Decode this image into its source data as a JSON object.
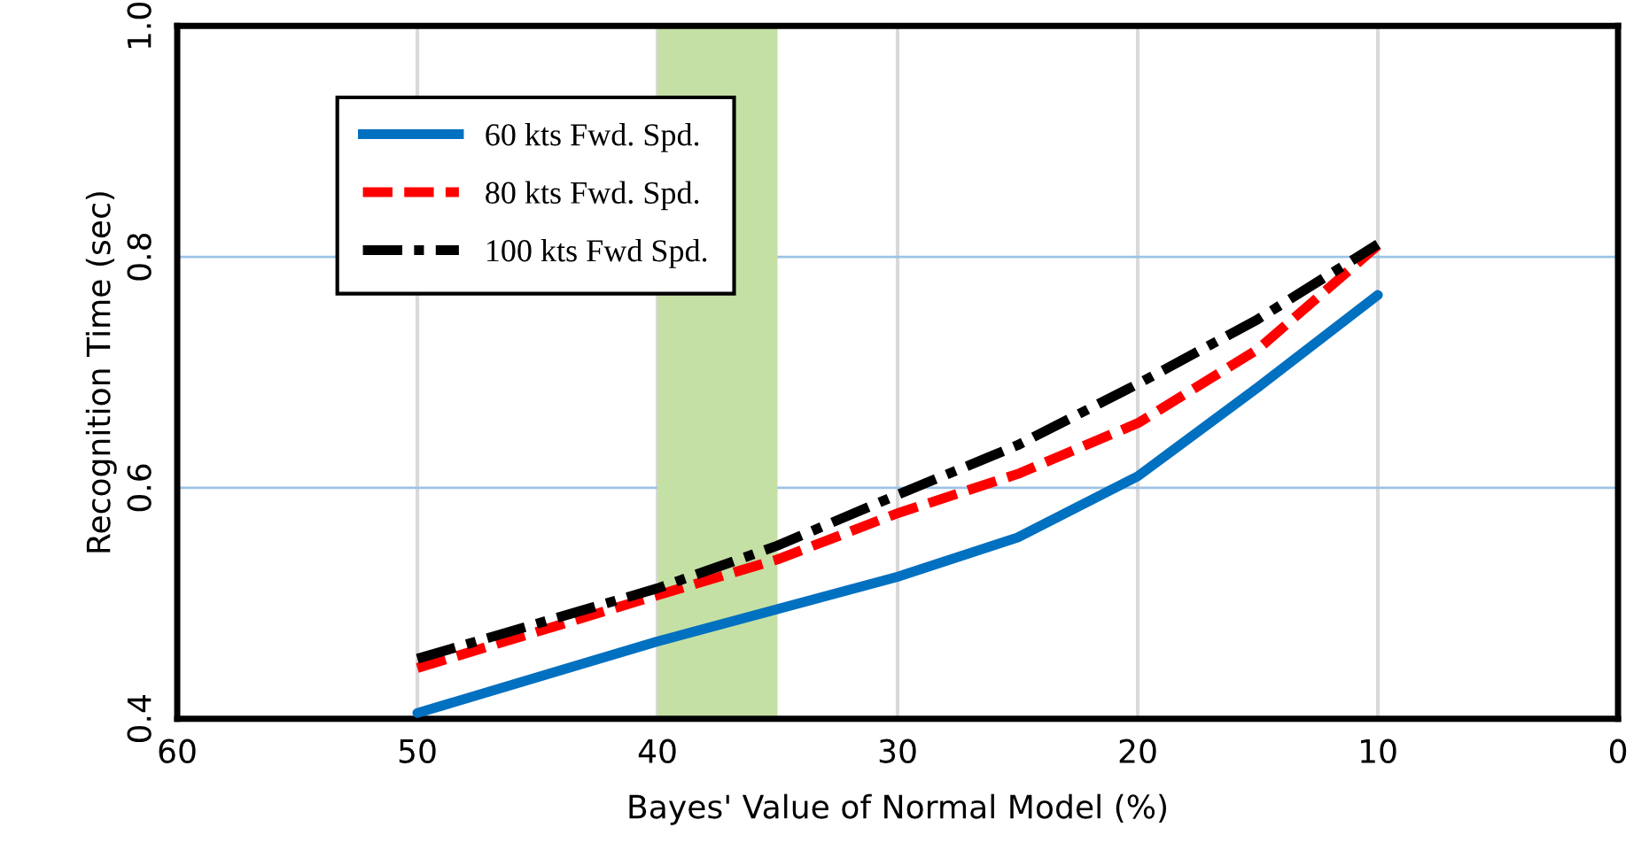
{
  "chart_data": {
    "type": "line",
    "xlabel": "Bayes' Value of Normal Model (%)",
    "ylabel": "Recognition Time (sec)",
    "x": [
      50,
      40,
      35,
      30,
      25,
      20,
      15,
      10
    ],
    "series": [
      {
        "name": "60 kts Fwd. Spd.",
        "color": "#0070c0",
        "line_style": "solid",
        "values": [
          0.405,
          0.467,
          0.495,
          0.523,
          0.557,
          0.61,
          0.687,
          0.767
        ]
      },
      {
        "name": "80 kts Fwd. Spd.",
        "color": "#ff0000",
        "line_style": "dashed",
        "values": [
          0.444,
          0.507,
          0.538,
          0.578,
          0.612,
          0.656,
          0.72,
          0.81
        ]
      },
      {
        "name": "100 kts Fwd Spd.",
        "color": "#000000",
        "line_style": "dashdot",
        "values": [
          0.452,
          0.513,
          0.55,
          0.594,
          0.637,
          0.69,
          0.746,
          0.811
        ]
      }
    ],
    "xlim": [
      60,
      0
    ],
    "xticks": [
      60,
      50,
      40,
      30,
      20,
      10,
      0
    ],
    "ylim": [
      0.4,
      1.0
    ],
    "yticks": [
      {
        "value": 0.4,
        "label": "0.4"
      },
      {
        "value": 0.6,
        "label": "0.6"
      },
      {
        "value": 0.8,
        "label": "0.8"
      },
      {
        "value": 1.0,
        "label": "1.0"
      }
    ],
    "bands": [
      {
        "axis": "x",
        "from": 40,
        "to": 35,
        "color": "#c5e0a5"
      }
    ],
    "grid": true,
    "legend": "top left",
    "marker": "none"
  }
}
